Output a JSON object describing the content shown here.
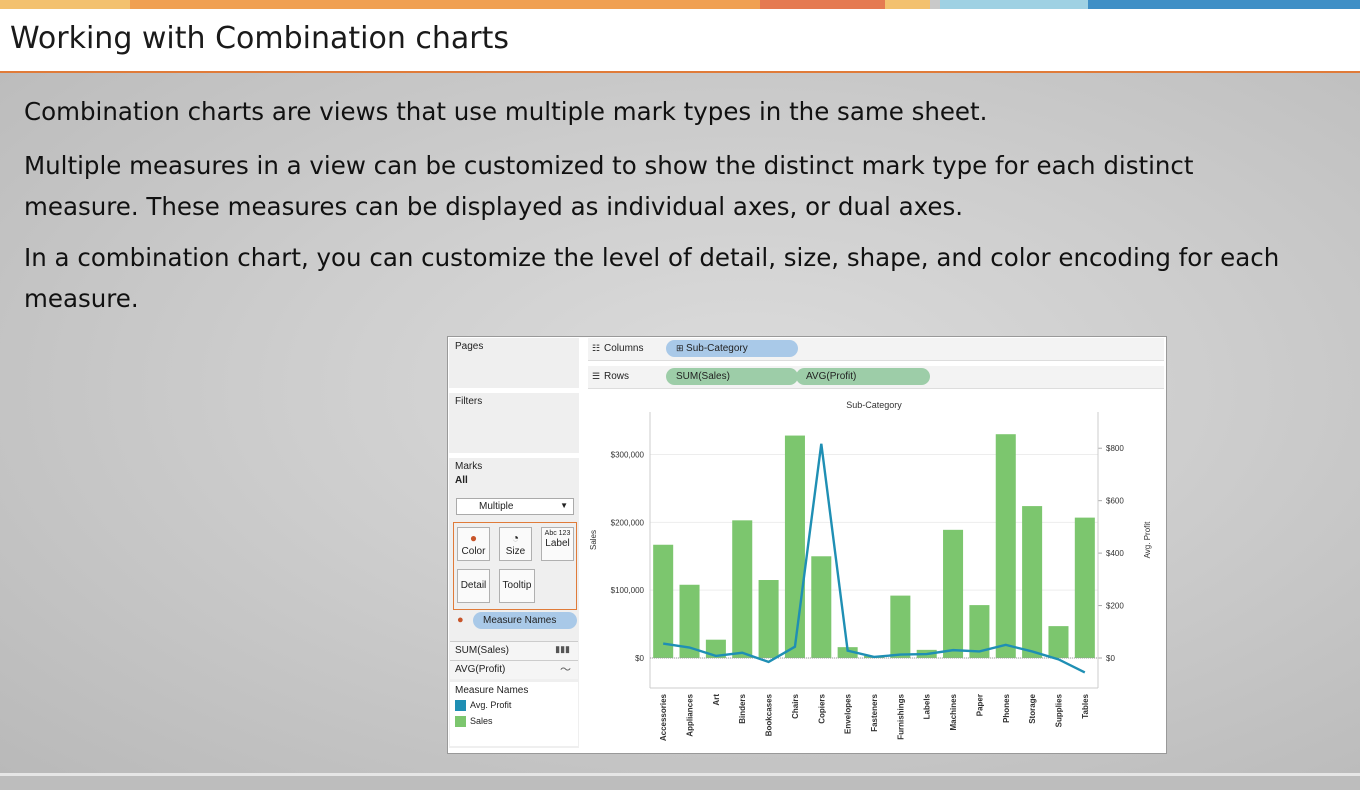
{
  "slide": {
    "title": "Working with Combination charts",
    "paragraphs": [
      "Combination charts are views that use multiple mark types in the same sheet.",
      "Multiple measures in a view can be customized to show the distinct mark type for each distinct",
      "measure. These measures can be displayed as individual axes, or dual axes.",
      "In a combination chart, you can customize the level of detail, size, shape, and color encoding for each",
      "measure."
    ]
  },
  "tableau": {
    "pages_label": "Pages",
    "filters_label": "Filters",
    "marks_label": "Marks",
    "marks_all": "All",
    "mark_type": "Multiple",
    "cards": {
      "color": "Color",
      "size": "Size",
      "label": "Label",
      "detail": "Detail",
      "tooltip": "Tooltip"
    },
    "label_icon_text": "Abc 123",
    "measure_names_pill": "Measure Names",
    "mark_rows": [
      "SUM(Sales)",
      "AVG(Profit)"
    ],
    "legend_title": "Measure Names",
    "legend_items": [
      {
        "name": "Avg. Profit",
        "color": "#1f8fb4"
      },
      {
        "name": "Sales",
        "color": "#7cc66e"
      }
    ],
    "columns_label": "Columns",
    "rows_label": "Rows",
    "columns_pill": "Sub-Category",
    "rows_pills": [
      "SUM(Sales)",
      "AVG(Profit)"
    ]
  },
  "chart_data": {
    "type": "bar",
    "title": "Sub-Category",
    "categories": [
      "Accessories",
      "Appliances",
      "Art",
      "Binders",
      "Bookcases",
      "Chairs",
      "Copiers",
      "Envelopes",
      "Fasteners",
      "Furnishings",
      "Labels",
      "Machines",
      "Paper",
      "Phones",
      "Storage",
      "Supplies",
      "Tables"
    ],
    "series": [
      {
        "name": "Sales",
        "type": "bar",
        "axis": "left",
        "color": "#7cc66e",
        "values": [
          167000,
          108000,
          27000,
          203000,
          115000,
          328000,
          150000,
          16000,
          3000,
          92000,
          12000,
          189000,
          78000,
          330000,
          224000,
          47000,
          207000
        ]
      },
      {
        "name": "Avg. Profit",
        "type": "line",
        "axis": "right",
        "color": "#1f8fb4",
        "values": [
          55,
          40,
          8,
          20,
          -15,
          43,
          817,
          28,
          4,
          13,
          15,
          30,
          25,
          50,
          25,
          -5,
          -55
        ]
      }
    ],
    "ylabel": "Sales",
    "y2label": "Avg. Profit",
    "ylim": [
      0,
      348000
    ],
    "y2lim": [
      -78,
      900
    ],
    "yticks": [
      0,
      100000,
      200000,
      300000
    ],
    "ytick_labels": [
      "$0",
      "$100,000",
      "$200,000",
      "$300,000"
    ],
    "y2ticks": [
      0,
      200,
      400,
      600,
      800
    ],
    "y2tick_labels": [
      "$0",
      "$200",
      "$400",
      "$600",
      "$800"
    ]
  }
}
